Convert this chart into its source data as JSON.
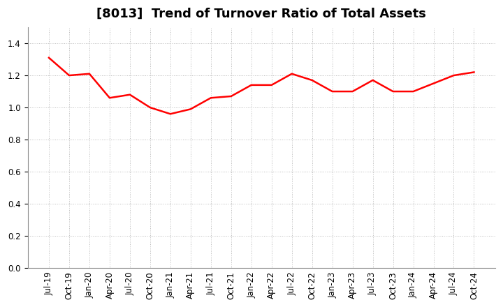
{
  "title": "[8013]  Trend of Turnover Ratio of Total Assets",
  "x_labels": [
    "Jul-19",
    "Oct-19",
    "Jan-20",
    "Apr-20",
    "Jul-20",
    "Oct-20",
    "Jan-21",
    "Apr-21",
    "Jul-21",
    "Oct-21",
    "Jan-22",
    "Apr-22",
    "Jul-22",
    "Oct-22",
    "Jan-23",
    "Apr-23",
    "Jul-23",
    "Oct-23",
    "Jan-24",
    "Apr-24",
    "Jul-24",
    "Oct-24"
  ],
  "y_values": [
    1.31,
    1.2,
    1.21,
    1.06,
    1.08,
    1.0,
    0.96,
    0.99,
    1.06,
    1.07,
    1.14,
    1.14,
    1.21,
    1.17,
    1.1,
    1.1,
    1.17,
    1.1,
    1.1,
    1.15,
    1.2,
    1.22
  ],
  "line_color": "#FF0000",
  "line_width": 1.8,
  "ylim": [
    0.0,
    1.5
  ],
  "yticks": [
    0.0,
    0.2,
    0.4,
    0.6,
    0.8,
    1.0,
    1.2,
    1.4
  ],
  "background_color": "#FFFFFF",
  "plot_bg_color": "#FFFFFF",
  "grid_color": "#AAAAAA",
  "title_fontsize": 13,
  "tick_fontsize": 8.5
}
